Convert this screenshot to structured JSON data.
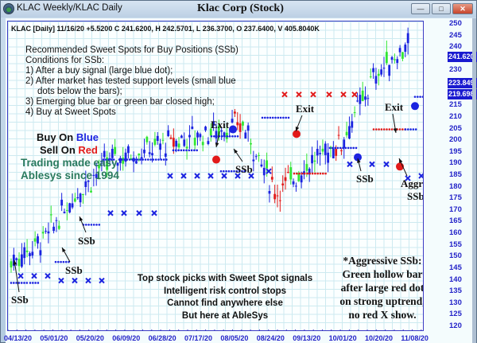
{
  "window": {
    "title_left": "KLAC Weekly/KLAC Daily",
    "title_center": "Klac Corp (Stock)",
    "buttons": {
      "minimize": "—",
      "maximize": "□",
      "close": "✕"
    }
  },
  "header": {
    "info_line": "KLAC [Daily] 11/16/20  +5.5200 C 241.6200, H 242.5701, L 236.3700, O 237.6400, V 405.8040K"
  },
  "notes": {
    "title": "Recommended Sweet Spots for Buy Positions (SSb)",
    "conditions_title": "Conditions for SSb:",
    "items": [
      "1) After a buy signal (large blue dot);",
      "2) After market has tested support levels (small blue",
      "dots below the bars);",
      "3) Emerging blue bar or green bar closed high;",
      "4) Buy at Sweet Spots"
    ]
  },
  "slogans": {
    "buy_prefix": "Buy On ",
    "buy_color_word": "Blue",
    "sell_prefix": "Sell On ",
    "sell_color_word": "Red",
    "line3": "Trading made easy",
    "line4": "Ablesys since 1994"
  },
  "promo": [
    "Top stock picks with Sweet Spot signals",
    "Intelligent risk control stops",
    "Cannot find anywhere else",
    "But here at AbleSys"
  ],
  "aggressive_note": [
    "*Aggressive SSb:",
    "Green hollow bar",
    "after large red dot",
    "on strong uptrend,",
    "no red X show."
  ],
  "annotations": {
    "ssb": "SSb",
    "exit": "Exit",
    "aggressive_line1": "Aggressive",
    "aggressive_line2": "SSb *"
  },
  "colors": {
    "buy_blue": "#1b23e0",
    "sell_red": "#e21a1a",
    "green_bar": "#33e633",
    "axis_blue": "#2323c8",
    "grid": "#cdeaf0",
    "slogan_green": "#2a7a5e"
  },
  "chart_data": {
    "type": "candlestick",
    "title": "Klac Corp (Stock)",
    "symbol": "KLAC",
    "interval": "Daily",
    "last_bar": {
      "date": "11/16/20",
      "change": 5.52,
      "close": 241.62,
      "high": 242.5701,
      "low": 236.37,
      "open": 237.64,
      "volume": "405.8040K"
    },
    "ylim": [
      120,
      250
    ],
    "y_ticks": [
      120,
      125,
      130,
      135,
      140,
      145,
      150,
      155,
      160,
      165,
      170,
      175,
      180,
      185,
      190,
      195,
      200,
      205,
      210,
      215,
      220,
      225,
      230,
      235,
      240,
      245,
      250
    ],
    "y_highlight_labels": [
      "241.620",
      "223.849",
      "219.698"
    ],
    "x_ticks": [
      "04/13/20",
      "05/01/20",
      "05/20/20",
      "06/09/20",
      "06/28/20",
      "07/17/20",
      "08/05/20",
      "08/24/20",
      "09/13/20",
      "10/01/20",
      "10/20/20",
      "11/08/20"
    ],
    "grid": true,
    "approx_closes": [
      {
        "date": "04/13/20",
        "close": 148
      },
      {
        "date": "05/01/20",
        "close": 158
      },
      {
        "date": "05/20/20",
        "close": 178
      },
      {
        "date": "06/09/20",
        "close": 192
      },
      {
        "date": "06/28/20",
        "close": 196
      },
      {
        "date": "07/17/20",
        "close": 200
      },
      {
        "date": "08/05/20",
        "close": 204
      },
      {
        "date": "08/24/20",
        "close": 207
      },
      {
        "date": "09/13/20",
        "close": 178
      },
      {
        "date": "10/01/20",
        "close": 190
      },
      {
        "date": "10/20/20",
        "close": 200
      },
      {
        "date": "11/08/20",
        "close": 228
      },
      {
        "date": "11/16/20",
        "close": 241.62
      }
    ],
    "signals": [
      {
        "type": "SSb",
        "date": "04/13/20",
        "price": 148
      },
      {
        "type": "SSb",
        "date": "05/01/20",
        "price": 156
      },
      {
        "type": "SSb",
        "date": "05/08/20",
        "price": 173
      },
      {
        "type": "Exit",
        "date": "07/24/20",
        "price": 193
      },
      {
        "type": "SSb",
        "date": "08/03/20",
        "price": 201
      },
      {
        "type": "Exit",
        "date": "09/03/20",
        "price": 203
      },
      {
        "type": "SSb",
        "date": "10/01/20",
        "price": 190
      },
      {
        "type": "Exit",
        "date": "10/27/20",
        "price": 204
      },
      {
        "type": "Aggressive SSb",
        "date": "10/30/20",
        "price": 197
      },
      {
        "type": "SSb",
        "date": "11/10/20",
        "price": 216
      }
    ]
  }
}
